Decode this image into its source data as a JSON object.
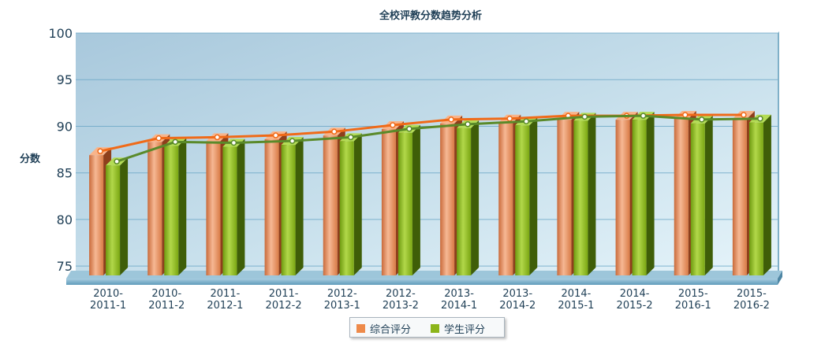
{
  "chart_data": {
    "type": "bar",
    "title": "全校评教分数趋势分析",
    "ylabel": "分数",
    "xlabel": "",
    "ylim": [
      74,
      100
    ],
    "yticks": [
      75,
      80,
      85,
      90,
      95,
      100
    ],
    "categories": [
      [
        "2010-",
        "2011-1"
      ],
      [
        "2010-",
        "2011-2"
      ],
      [
        "2011-",
        "2012-1"
      ],
      [
        "2011-",
        "2012-2"
      ],
      [
        "2012-",
        "2013-1"
      ],
      [
        "2012-",
        "2013-2"
      ],
      [
        "2013-",
        "2014-1"
      ],
      [
        "2013-",
        "2014-2"
      ],
      [
        "2014-",
        "2015-1"
      ],
      [
        "2014-",
        "2015-2"
      ],
      [
        "2015-",
        "2016-1"
      ],
      [
        "2015-",
        "2016-2"
      ]
    ],
    "series": [
      {
        "name": "综合评分",
        "color": "#ee8a4a",
        "line_color": "#f06a18",
        "values": [
          86.9,
          88.3,
          88.4,
          88.6,
          89.0,
          89.7,
          90.3,
          90.4,
          90.7,
          90.7,
          90.8,
          90.8
        ]
      },
      {
        "name": "学生评分",
        "color": "#8cb51a",
        "line_color": "#5a8a2a",
        "values": [
          85.8,
          87.9,
          87.8,
          88.0,
          88.4,
          89.3,
          89.8,
          90.1,
          90.6,
          90.7,
          90.3,
          90.4
        ]
      }
    ],
    "grid": true,
    "legend": "bottom",
    "overlay_lines": true
  }
}
